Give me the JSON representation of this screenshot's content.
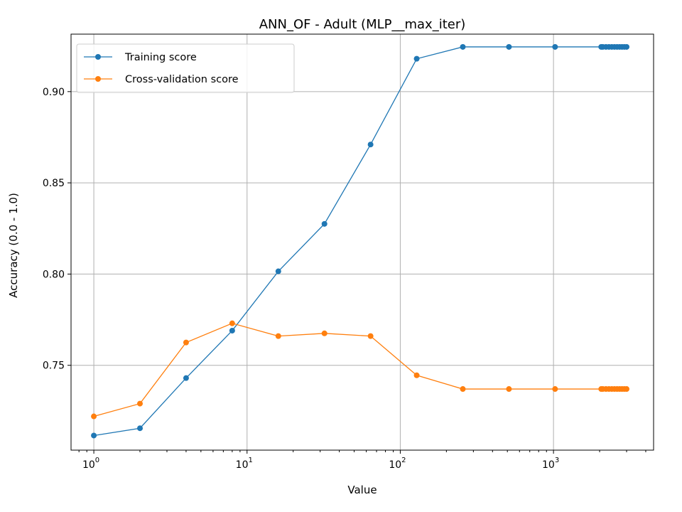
{
  "chart_data": {
    "type": "line",
    "title": "ANN_OF - Adult (MLP__max_iter)",
    "xlabel": "Value",
    "ylabel": "Accuracy (0.0 - 1.0)",
    "xscale": "log",
    "xlim": [
      0.71,
      4500
    ],
    "ylim": [
      0.7035,
      0.9315
    ],
    "grid": true,
    "legend_position": "top-left",
    "x_ticks": [
      {
        "value": 1,
        "base": "10",
        "exp": "0"
      },
      {
        "value": 10,
        "base": "10",
        "exp": "1"
      },
      {
        "value": 100,
        "base": "10",
        "exp": "2"
      },
      {
        "value": 1000,
        "base": "10",
        "exp": "3"
      }
    ],
    "y_ticks": [
      0.75,
      0.8,
      0.85,
      0.9
    ],
    "y_tick_labels": [
      "0.75",
      "0.80",
      "0.85",
      "0.90"
    ],
    "x": [
      1,
      2,
      4,
      8,
      16,
      32,
      64,
      128,
      256,
      512,
      1024,
      2048,
      2100,
      2200,
      2300,
      2400,
      2500,
      2600,
      2700,
      2800,
      2900,
      3000
    ],
    "series": [
      {
        "name": "Training score",
        "color": "#1f77b4",
        "values": [
          0.7115,
          0.7155,
          0.743,
          0.769,
          0.8015,
          0.8275,
          0.871,
          0.918,
          0.9245,
          0.9245,
          0.9245,
          0.9245,
          0.9245,
          0.9245,
          0.9245,
          0.9245,
          0.9245,
          0.9245,
          0.9245,
          0.9245,
          0.9245,
          0.9245
        ]
      },
      {
        "name": "Cross-validation score",
        "color": "#ff7f0e",
        "values": [
          0.722,
          0.729,
          0.7625,
          0.773,
          0.766,
          0.7675,
          0.766,
          0.7445,
          0.737,
          0.737,
          0.737,
          0.737,
          0.737,
          0.737,
          0.737,
          0.737,
          0.737,
          0.737,
          0.737,
          0.737,
          0.737,
          0.737
        ]
      }
    ]
  }
}
